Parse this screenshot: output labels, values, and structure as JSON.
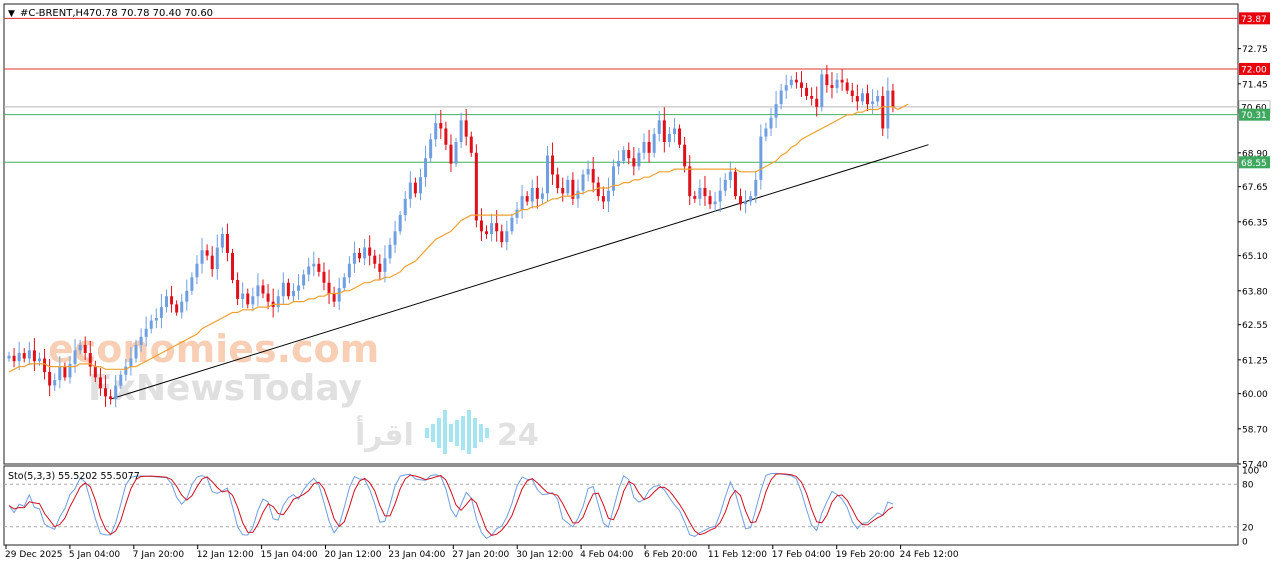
{
  "header": {
    "symbol": "#C-BRENT,H4",
    "ohlc": "70.78 70.78 70.40 70.60",
    "menu_glyph": "▼"
  },
  "stochastic": {
    "label": "Sto(5,3,3) 55.5202 55.5077",
    "levels": [
      80,
      20
    ],
    "axis_ticks": [
      "100",
      "80",
      "20",
      "0"
    ]
  },
  "watermarks": {
    "brand_a": "economies.com",
    "brand_b": "FxNewsToday",
    "brand_c_text": "اقرأ",
    "brand_c_num": "24"
  },
  "colors": {
    "bull": "#6f9fe0",
    "bear": "#e0101a",
    "ma": "#f0a030",
    "trend": "#000000",
    "resistance": "#e0302e",
    "support": "#40b060",
    "stoch_main": "#6f9fe0",
    "stoch_signal": "#d01020"
  },
  "chart_data": {
    "type": "candlestick",
    "symbol": "#C-BRENT",
    "timeframe": "H4",
    "ylim": [
      57.4,
      74.4
    ],
    "y_ticks": [
      "72.75",
      "71.45",
      "68.90",
      "67.65",
      "66.35",
      "65.10",
      "63.80",
      "62.55",
      "61.25",
      "60.00",
      "58.70",
      "57.40"
    ],
    "x_ticks": [
      "29 Dec 2025",
      "5 Jan 04:00",
      "7 Jan 20:00",
      "12 Jan 12:00",
      "15 Jan 04:00",
      "20 Jan 12:00",
      "23 Jan 04:00",
      "27 Jan 20:00",
      "30 Jan 12:00",
      "4 Feb 04:00",
      "6 Feb 20:00",
      "11 Feb 12:00",
      "17 Feb 04:00",
      "19 Feb 20:00",
      "24 Feb 12:00"
    ],
    "levels": [
      {
        "value": 73.87,
        "label": "73.87",
        "kind": "resistance"
      },
      {
        "value": 72.0,
        "label": "72.00",
        "kind": "resistance"
      },
      {
        "value": 70.6,
        "label": "70.60",
        "kind": "current"
      },
      {
        "value": 70.31,
        "label": "70.31",
        "kind": "support"
      },
      {
        "value": 68.55,
        "label": "68.55",
        "kind": "support"
      }
    ],
    "trendline": {
      "from": {
        "index": 20,
        "price": 59.8
      },
      "to": {
        "index": 181,
        "price": 69.2
      }
    },
    "closes": [
      61.4,
      61.2,
      61.5,
      61.3,
      61.6,
      61.2,
      61.3,
      60.8,
      60.3,
      60.5,
      61.0,
      60.6,
      61.1,
      61.6,
      61.8,
      61.5,
      61.0,
      60.6,
      60.2,
      59.9,
      59.8,
      60.3,
      60.7,
      61.0,
      61.3,
      61.8,
      62.1,
      62.4,
      62.7,
      62.8,
      63.2,
      63.6,
      63.3,
      63.0,
      63.4,
      63.8,
      64.3,
      64.8,
      65.3,
      65.1,
      64.6,
      65.4,
      65.9,
      65.2,
      64.2,
      63.5,
      63.7,
      63.3,
      63.6,
      64.0,
      63.7,
      63.4,
      63.2,
      63.6,
      64.1,
      63.6,
      63.8,
      64.0,
      64.4,
      64.7,
      64.8,
      64.5,
      64.1,
      63.7,
      63.4,
      63.9,
      64.3,
      64.8,
      65.2,
      65.0,
      65.4,
      65.1,
      64.8,
      64.5,
      65.0,
      65.5,
      66.0,
      66.6,
      67.2,
      67.8,
      67.4,
      68.0,
      68.7,
      69.4,
      70.0,
      69.8,
      69.2,
      68.5,
      69.3,
      70.1,
      69.5,
      68.9,
      66.4,
      66.0,
      65.9,
      66.3,
      66.0,
      65.6,
      66.0,
      66.5,
      66.8,
      67.3,
      67.1,
      67.6,
      67.2,
      67.4,
      68.8,
      68.1,
      67.6,
      67.4,
      67.9,
      67.2,
      67.5,
      68.1,
      68.3,
      67.8,
      67.3,
      67.1,
      67.5,
      68.4,
      68.6,
      69.0,
      68.7,
      68.4,
      68.9,
      69.3,
      68.9,
      69.6,
      70.1,
      69.3,
      69.6,
      69.8,
      69.2,
      68.4,
      67.3,
      67.2,
      67.6,
      67.3,
      67.0,
      67.1,
      67.5,
      67.9,
      68.2,
      67.3,
      67.0,
      67.1,
      67.3,
      67.9,
      69.5,
      69.8,
      70.2,
      70.7,
      71.2,
      71.4,
      71.6,
      71.5,
      71.3,
      71.0,
      70.9,
      70.6,
      71.8,
      71.4,
      71.3,
      71.6,
      71.5,
      71.2,
      71.0,
      70.8,
      71.1,
      70.7,
      70.8,
      71.0,
      69.8,
      71.2,
      70.6
    ],
    "ma": [
      60.8,
      60.9,
      61.0,
      61.0,
      61.1,
      61.1,
      61.1,
      61.1,
      61.0,
      61.0,
      61.0,
      61.0,
      61.0,
      61.0,
      61.1,
      61.1,
      61.1,
      61.0,
      61.0,
      60.9,
      60.9,
      60.9,
      60.9,
      60.9,
      61.0,
      61.0,
      61.1,
      61.2,
      61.3,
      61.4,
      61.5,
      61.6,
      61.7,
      61.8,
      61.9,
      62.0,
      62.1,
      62.2,
      62.4,
      62.5,
      62.6,
      62.7,
      62.8,
      62.9,
      63.0,
      63.0,
      63.1,
      63.1,
      63.1,
      63.2,
      63.2,
      63.2,
      63.3,
      63.3,
      63.3,
      63.3,
      63.4,
      63.4,
      63.4,
      63.5,
      63.5,
      63.6,
      63.6,
      63.7,
      63.7,
      63.7,
      63.8,
      63.8,
      63.9,
      64.0,
      64.1,
      64.1,
      64.2,
      64.2,
      64.3,
      64.3,
      64.4,
      64.5,
      64.7,
      64.8,
      64.9,
      65.1,
      65.3,
      65.5,
      65.7,
      65.8,
      65.9,
      66.0,
      66.2,
      66.4,
      66.5,
      66.6,
      66.6,
      66.6,
      66.6,
      66.6,
      66.6,
      66.6,
      66.6,
      66.6,
      66.7,
      66.8,
      66.8,
      66.9,
      66.9,
      67.0,
      67.1,
      67.2,
      67.2,
      67.3,
      67.3,
      67.3,
      67.4,
      67.4,
      67.5,
      67.5,
      67.6,
      67.6,
      67.6,
      67.7,
      67.7,
      67.8,
      67.8,
      67.9,
      67.9,
      68.0,
      68.0,
      68.1,
      68.2,
      68.2,
      68.2,
      68.3,
      68.3,
      68.3,
      68.3,
      68.3,
      68.3,
      68.3,
      68.3,
      68.3,
      68.3,
      68.3,
      68.3,
      68.3,
      68.2,
      68.2,
      68.2,
      68.2,
      68.3,
      68.4,
      68.5,
      68.6,
      68.8,
      68.9,
      69.1,
      69.2,
      69.4,
      69.5,
      69.6,
      69.7,
      69.8,
      69.9,
      70.0,
      70.1,
      70.2,
      70.3,
      70.3,
      70.4,
      70.4,
      70.5,
      70.5,
      70.5,
      70.6,
      70.6,
      70.6,
      70.5,
      70.6,
      70.7
    ]
  }
}
